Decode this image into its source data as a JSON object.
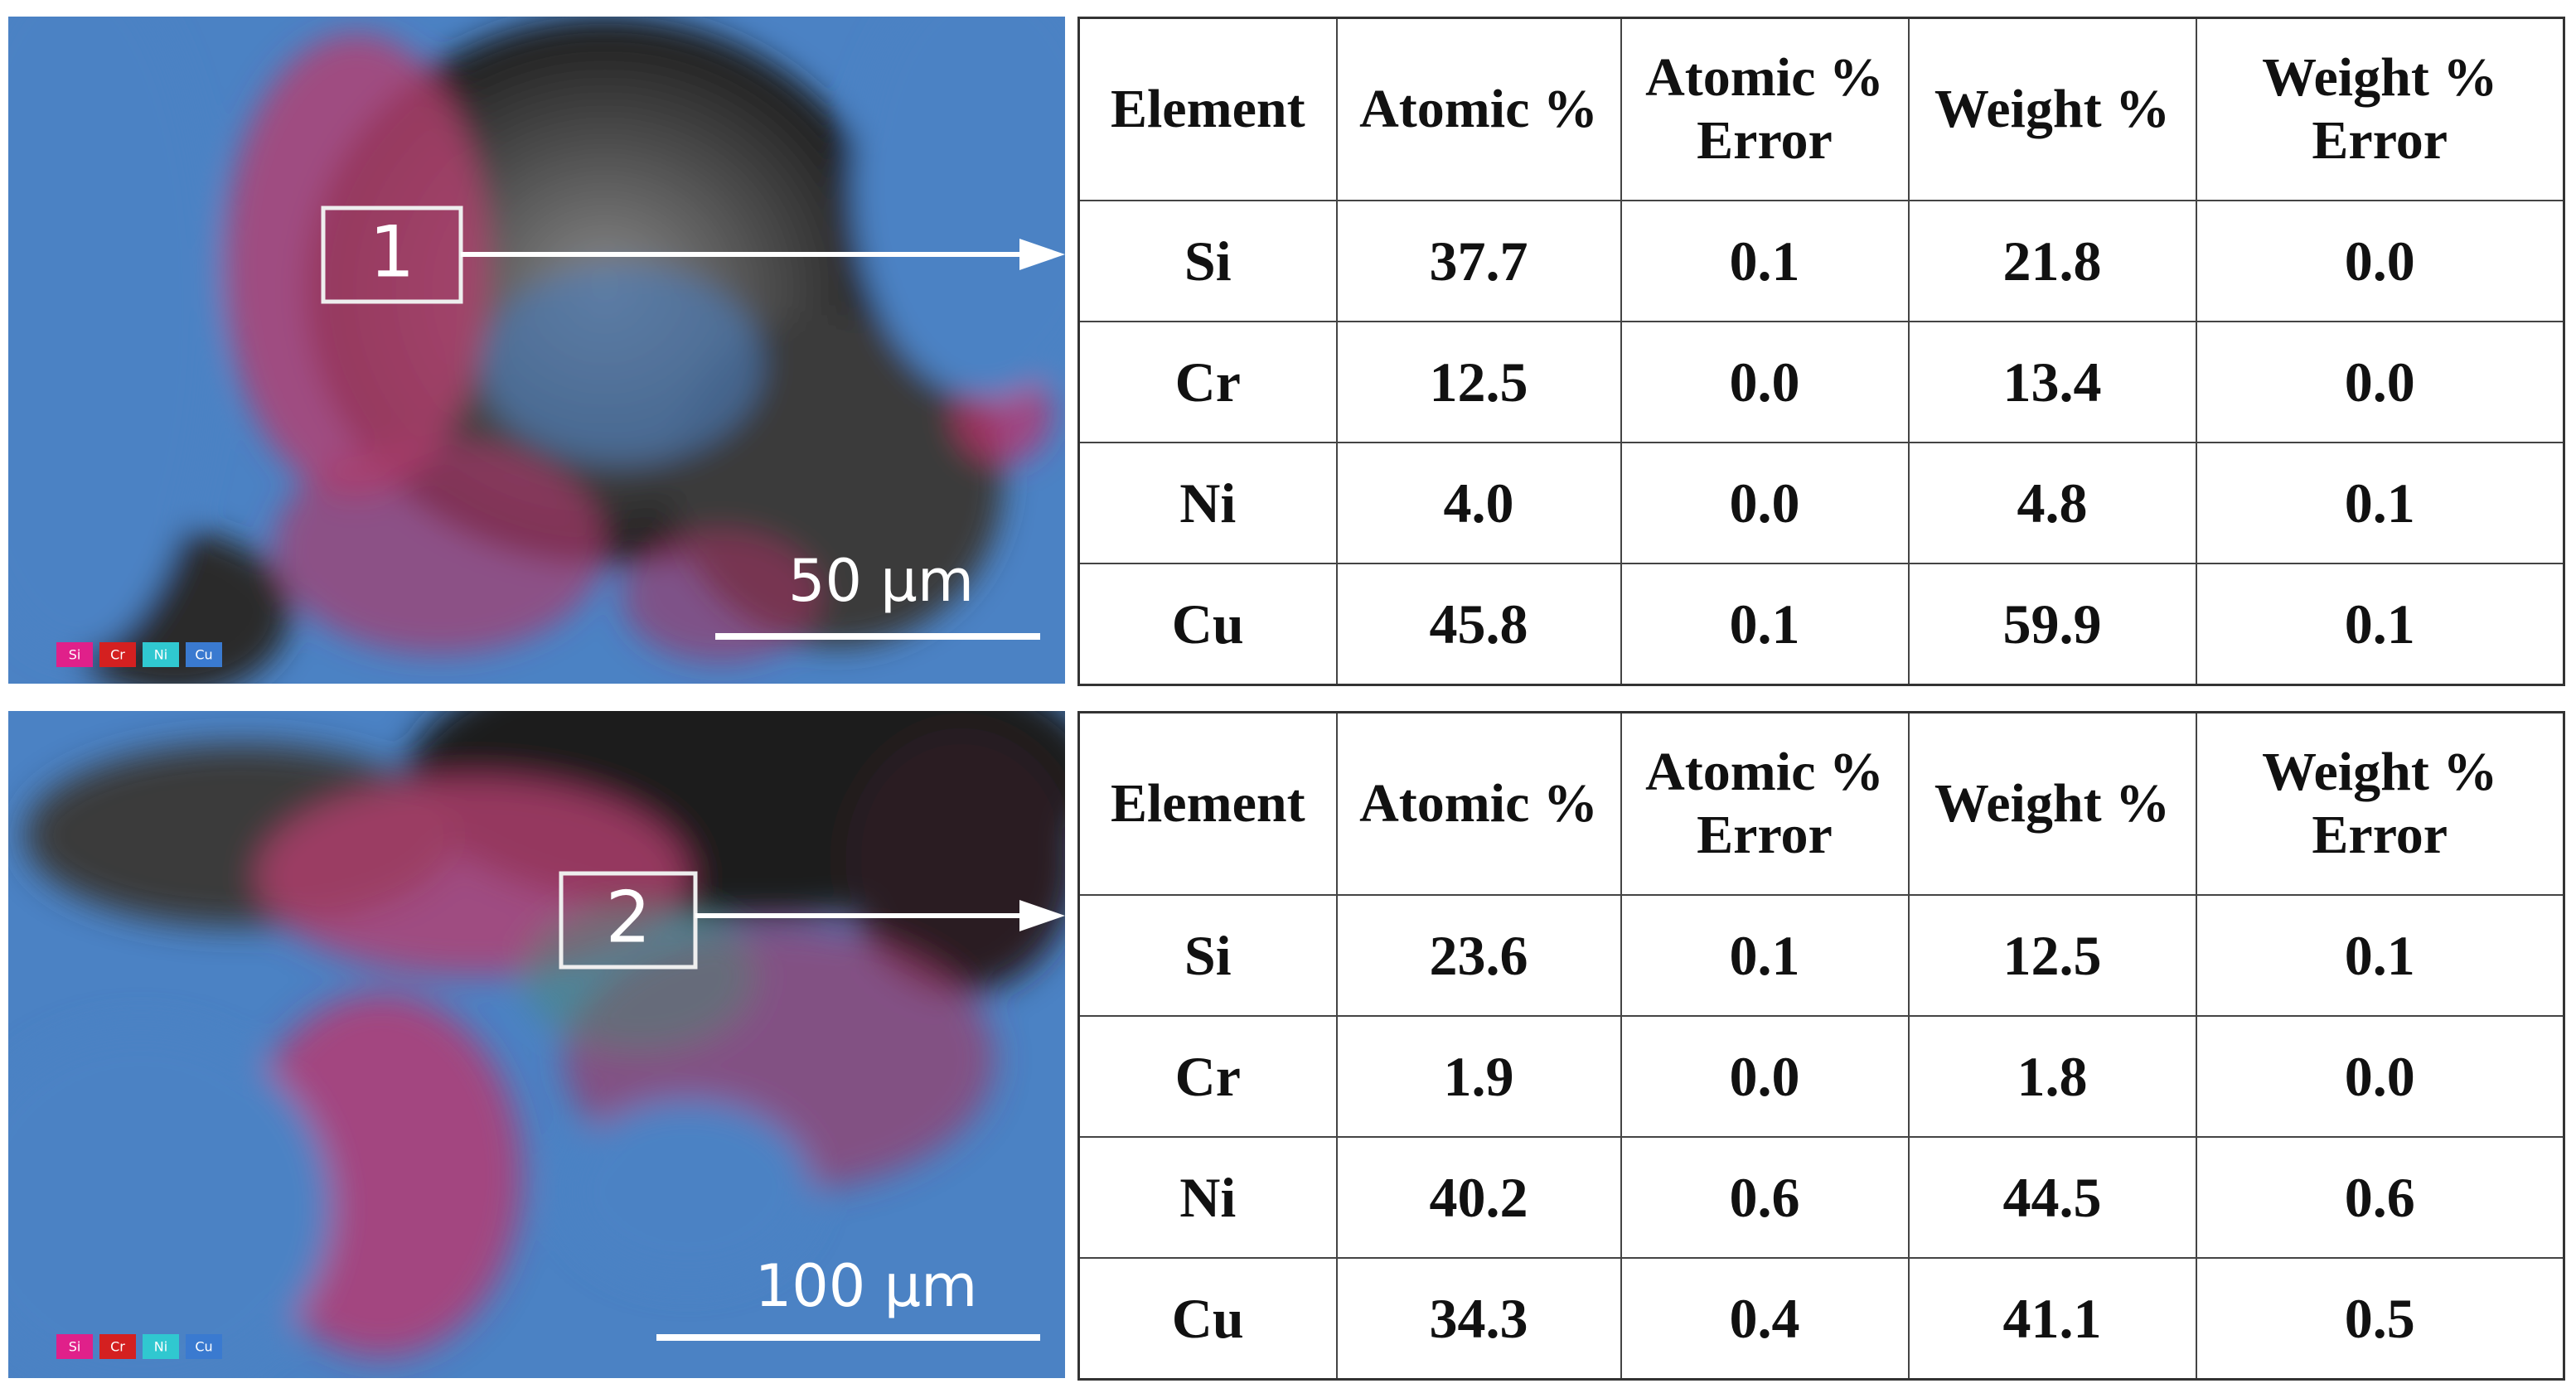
{
  "panels": [
    {
      "image": {
        "box_label": "1",
        "scale_bar": "50 µm",
        "legend": [
          "Si",
          "Cr",
          "Ni",
          "Cu"
        ]
      },
      "table": {
        "header": [
          "Element",
          "Atomic %",
          "Atomic % Error",
          "Weight %",
          "Weight % Error"
        ],
        "rows": [
          [
            "Si",
            "37.7",
            "0.1",
            "21.8",
            "0.0"
          ],
          [
            "Cr",
            "12.5",
            "0.0",
            "13.4",
            "0.0"
          ],
          [
            "Ni",
            "4.0",
            "0.0",
            "4.8",
            "0.1"
          ],
          [
            "Cu",
            "45.8",
            "0.1",
            "59.9",
            "0.1"
          ]
        ]
      }
    },
    {
      "image": {
        "box_label": "2",
        "scale_bar": "100 µm",
        "legend": [
          "Si",
          "Cr",
          "Ni",
          "Cu"
        ]
      },
      "table": {
        "header": [
          "Element",
          "Atomic %",
          "Atomic % Error",
          "Weight %",
          "Weight % Error"
        ],
        "rows": [
          [
            "Si",
            "23.6",
            "0.1",
            "12.5",
            "0.1"
          ],
          [
            "Cr",
            "1.9",
            "0.0",
            "1.8",
            "0.0"
          ],
          [
            "Ni",
            "40.2",
            "0.6",
            "44.5",
            "0.6"
          ],
          [
            "Cu",
            "34.3",
            "0.4",
            "41.1",
            "0.5"
          ]
        ]
      }
    }
  ]
}
